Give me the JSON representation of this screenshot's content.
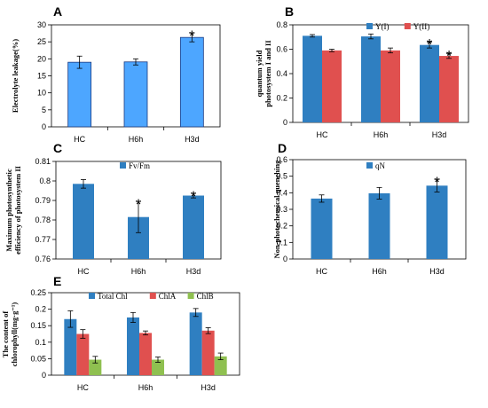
{
  "chart_data": [
    {
      "id": "A",
      "type": "bar",
      "panel_label": "A",
      "ylabel": "Electrolyte leakage(%)",
      "categories": [
        "HC",
        "H6h",
        "H3d"
      ],
      "ylim": [
        0,
        30
      ],
      "yticks": [
        0,
        5,
        10,
        15,
        20,
        25,
        30
      ],
      "ytick_labels": [
        "0",
        "5",
        "10",
        "15",
        "20",
        "25",
        "30"
      ],
      "grid": false,
      "legend": false,
      "series": [
        {
          "values": [
            19.0,
            19.1,
            26.3
          ],
          "errors": [
            1.8,
            0.9,
            1.3
          ],
          "color": "#4da6ff",
          "stroke": "#1a3a80"
        }
      ],
      "significance": [
        "",
        "",
        "*"
      ]
    },
    {
      "id": "B",
      "type": "bar",
      "panel_label": "B",
      "ylabel": "quantum yield photosystem I and II",
      "categories": [
        "HC",
        "H6h",
        "H3d"
      ],
      "ylim": [
        0,
        0.8
      ],
      "yticks": [
        0,
        0.2,
        0.4,
        0.6,
        0.8
      ],
      "ytick_labels": [
        "0",
        "0.2",
        "0.4",
        "0.6",
        "0.8"
      ],
      "grid": false,
      "legend": "top-right",
      "series": [
        {
          "name": "Y(I)",
          "values": [
            0.71,
            0.705,
            0.635
          ],
          "errors": [
            0.01,
            0.02,
            0.025
          ],
          "color": "#2f7fc1"
        },
        {
          "name": "Y(II)",
          "values": [
            0.59,
            0.59,
            0.545
          ],
          "errors": [
            0.01,
            0.02,
            0.02
          ],
          "color": "#e0504f"
        }
      ],
      "significance": [
        "",
        "",
        "*"
      ]
    },
    {
      "id": "C",
      "type": "bar",
      "panel_label": "C",
      "ylabel": "Maximum photosynthetic efficiency of photosystem II",
      "categories": [
        "HC",
        "H6h",
        "H3d"
      ],
      "ylim": [
        0.76,
        0.81
      ],
      "yticks": [
        0.76,
        0.77,
        0.78,
        0.79,
        0.8,
        0.81
      ],
      "ytick_labels": [
        "0.76",
        "0.77",
        "0.78",
        "0.79",
        "0.8",
        "0.81"
      ],
      "grid": false,
      "legend": "top-center",
      "series": [
        {
          "name": "Fv/Fm",
          "values": [
            0.7985,
            0.7815,
            0.7925
          ],
          "errors": [
            0.0022,
            0.008,
            0.0012
          ],
          "color": "#2f7fc1"
        }
      ],
      "significance": [
        "",
        "*",
        "*"
      ]
    },
    {
      "id": "D",
      "type": "bar",
      "panel_label": "D",
      "ylabel": "Non-photochemical quenching",
      "categories": [
        "HC",
        "H6h",
        "H3d"
      ],
      "ylim": [
        0,
        0.6
      ],
      "yticks": [
        0,
        0.1,
        0.2,
        0.3,
        0.4,
        0.5,
        0.6
      ],
      "ytick_labels": [
        "0",
        "0.1",
        "0.2",
        "0.3",
        "0.4",
        "0.5",
        "0.6"
      ],
      "grid": false,
      "legend": "top-center",
      "series": [
        {
          "name": "qN",
          "values": [
            0.365,
            0.397,
            0.443
          ],
          "errors": [
            0.022,
            0.035,
            0.038
          ],
          "color": "#2f7fc1"
        }
      ],
      "significance": [
        "",
        "",
        "*"
      ]
    },
    {
      "id": "E",
      "type": "bar",
      "panel_label": "E",
      "ylabel": "The content of chlorophyll(mg·g⁻¹)",
      "categories": [
        "HC",
        "H6h",
        "H3d"
      ],
      "ylim": [
        0,
        0.25
      ],
      "yticks": [
        0,
        0.05,
        0.1,
        0.15,
        0.2,
        0.25
      ],
      "ytick_labels": [
        "0",
        "0.05",
        "0.1",
        "0.15",
        "0.2",
        "0.25"
      ],
      "grid": false,
      "legend": "top-left",
      "series": [
        {
          "name": "Total Chl",
          "values": [
            0.17,
            0.175,
            0.19
          ],
          "errors": [
            0.025,
            0.015,
            0.012
          ],
          "color": "#2f7fc1"
        },
        {
          "name": "ChlA",
          "values": [
            0.125,
            0.128,
            0.135
          ],
          "errors": [
            0.013,
            0.006,
            0.009
          ],
          "color": "#e0504f"
        },
        {
          "name": "ChlB",
          "values": [
            0.047,
            0.047,
            0.057
          ],
          "errors": [
            0.01,
            0.008,
            0.01
          ],
          "color": "#8fc050"
        }
      ],
      "significance": [
        "",
        "",
        ""
      ]
    }
  ]
}
